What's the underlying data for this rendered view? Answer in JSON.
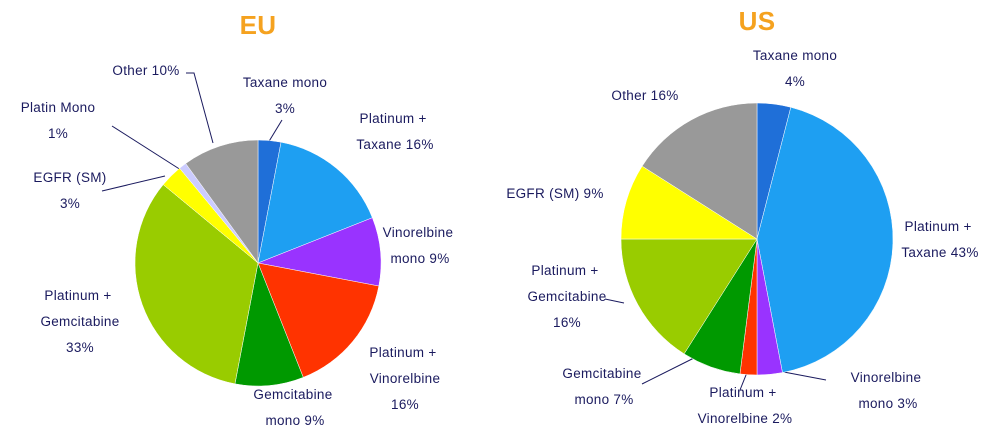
{
  "chart_data": [
    {
      "type": "pie",
      "title": "EU",
      "categories": [
        "Taxane mono",
        "Platinum + Taxane",
        "Vinorelbine mono",
        "Platinum + Vinorelbine",
        "Gemcitabine mono",
        "Platinum + Gemcitabine",
        "EGFR (SM)",
        "Platin Mono",
        "Other"
      ],
      "values": [
        3,
        16,
        9,
        16,
        9,
        33,
        3,
        1,
        10
      ],
      "value_labels": [
        "3%",
        "16%",
        "9%",
        "16%",
        "9%",
        "33%",
        "3%",
        "1%",
        "10%"
      ],
      "colors": [
        "#1f6fd8",
        "#1e9ff2",
        "#9933ff",
        "#ff3300",
        "#009900",
        "#99cc00",
        "#ffff00",
        "#ccccff",
        "#999999"
      ]
    },
    {
      "type": "pie",
      "title": "US",
      "categories": [
        "Taxane mono",
        "Platinum + Taxane",
        "Vinorelbine mono",
        "Platinum + Vinorelbine",
        "Gemcitabine mono",
        "Platinum + Gemcitabine",
        "EGFR (SM)",
        "Other"
      ],
      "values": [
        4,
        43,
        3,
        2,
        7,
        16,
        9,
        16
      ],
      "value_labels": [
        "4%",
        "43%",
        "3%",
        "2%",
        "7%",
        "16%",
        "9%",
        "16%"
      ],
      "colors": [
        "#1f6fd8",
        "#1e9ff2",
        "#9933ff",
        "#ff3300",
        "#009900",
        "#99cc00",
        "#ffff00",
        "#999999"
      ]
    }
  ]
}
